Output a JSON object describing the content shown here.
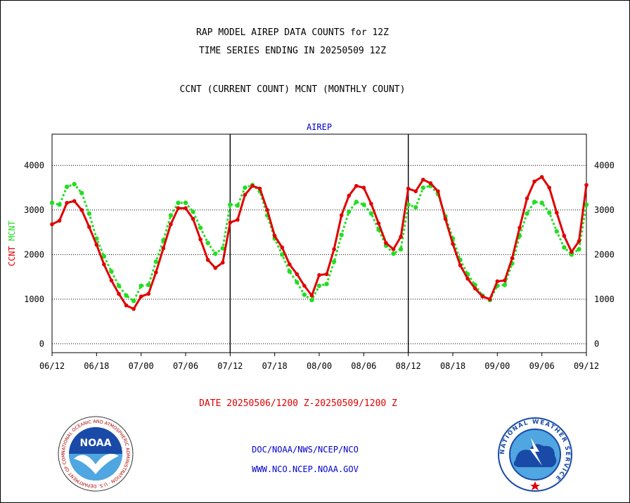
{
  "header": {
    "line1": "RAP MODEL AIREP DATA COUNTS for 12Z",
    "line2": "TIME SERIES ENDING IN 20250509 12Z",
    "line3": "CCNT (CURRENT COUNT) MCNT (MONTHLY COUNT)"
  },
  "footer": {
    "date_range": "DATE 20250506/1200 Z-20250509/1200 Z",
    "org_path": "DOC/NOAA/NWS/NCEP/NCO",
    "website": "WWW.NCO.NCEP.NOAA.GOV"
  },
  "logos": {
    "noaa": "NOAA",
    "noaa_ring": "NATIONAL OCEANIC AND ATMOSPHERIC ADMINISTRATION · U.S. DEPARTMENT OF COMMERCE ·",
    "nws_ring": "NATIONAL WEATHER SERVICE"
  },
  "colors": {
    "ccnt": "#e00000",
    "mcnt": "#22dd22",
    "title": "#0000cc",
    "grid": "#000000"
  },
  "chart_data": {
    "type": "line",
    "title": "AIREP",
    "ylabel_left": [
      "CCNT",
      "MCNT"
    ],
    "xtick_labels": [
      "06/12",
      "06/18",
      "07/00",
      "07/06",
      "07/12",
      "07/18",
      "08/00",
      "08/06",
      "08/12",
      "08/18",
      "09/00",
      "09/06",
      "09/12"
    ],
    "x_range": [
      0,
      72
    ],
    "day_boundaries": [
      24,
      48
    ],
    "yticks": [
      0,
      1000,
      2000,
      3000,
      4000
    ],
    "ylim": [
      -200,
      4700
    ],
    "grid": "horizontal dotted",
    "series": [
      {
        "name": "CCNT",
        "color": "#e00000",
        "x": [
          0,
          1,
          2,
          3,
          4,
          5,
          6,
          7,
          8,
          9,
          10,
          11,
          12,
          13,
          14,
          15,
          16,
          17,
          18,
          19,
          20,
          21,
          22,
          23,
          24,
          25,
          26,
          27,
          28,
          29,
          30,
          31,
          32,
          33,
          34,
          35,
          36,
          37,
          38,
          39,
          40,
          41,
          42,
          43,
          44,
          45,
          46,
          47,
          48,
          49,
          50,
          51,
          52,
          53,
          54,
          55,
          56,
          57,
          58,
          59,
          60,
          61,
          62,
          63,
          64,
          65,
          66,
          67,
          68,
          69,
          70,
          71,
          72
        ],
        "values": [
          2680,
          2760,
          3160,
          3200,
          3000,
          2620,
          2220,
          1780,
          1420,
          1120,
          860,
          780,
          1060,
          1120,
          1600,
          2140,
          2680,
          3040,
          3040,
          2800,
          2340,
          1880,
          1700,
          1820,
          2720,
          2780,
          3340,
          3540,
          3480,
          3000,
          2420,
          2160,
          1780,
          1560,
          1300,
          1080,
          1540,
          1560,
          2120,
          2880,
          3320,
          3540,
          3500,
          3140,
          2700,
          2260,
          2120,
          2400,
          3480,
          3420,
          3680,
          3600,
          3420,
          2800,
          2240,
          1760,
          1460,
          1240,
          1060,
          1000,
          1400,
          1420,
          1920,
          2600,
          3260,
          3640,
          3740,
          3500,
          2940,
          2420,
          2060,
          2300,
          3560
        ]
      },
      {
        "name": "MCNT",
        "color": "#22dd22",
        "x": [
          0,
          1,
          2,
          3,
          4,
          5,
          6,
          7,
          8,
          9,
          10,
          11,
          12,
          13,
          14,
          15,
          16,
          17,
          18,
          19,
          20,
          21,
          22,
          23,
          24,
          25,
          26,
          27,
          28,
          29,
          30,
          31,
          32,
          33,
          34,
          35,
          36,
          37,
          38,
          39,
          40,
          41,
          42,
          43,
          44,
          45,
          46,
          47,
          48,
          49,
          50,
          51,
          52,
          53,
          54,
          55,
          56,
          57,
          58,
          59,
          60,
          61,
          62,
          63,
          64,
          65,
          66,
          67,
          68,
          69,
          70,
          71,
          72
        ],
        "values": [
          3160,
          3120,
          3520,
          3580,
          3380,
          2920,
          2360,
          1960,
          1620,
          1300,
          1080,
          960,
          1300,
          1320,
          1840,
          2320,
          2880,
          3160,
          3160,
          2960,
          2600,
          2260,
          2020,
          2140,
          3120,
          3100,
          3500,
          3560,
          3420,
          2880,
          2360,
          2000,
          1620,
          1380,
          1100,
          980,
          1300,
          1340,
          1840,
          2440,
          2960,
          3180,
          3120,
          2920,
          2560,
          2200,
          2020,
          2120,
          3120,
          3060,
          3500,
          3540,
          3360,
          2860,
          2360,
          1880,
          1560,
          1320,
          1080,
          980,
          1300,
          1320,
          1800,
          2420,
          2920,
          3180,
          3160,
          2940,
          2520,
          2160,
          2000,
          2120,
          3120
        ]
      }
    ]
  }
}
